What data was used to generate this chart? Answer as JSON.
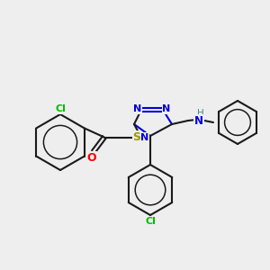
{
  "bg_color": "#eeeeee",
  "bond_color": "#1a1a1a",
  "atom_colors": {
    "Cl": "#00bb00",
    "O": "#ff0000",
    "S": "#999900",
    "N": "#0000dd",
    "H": "#448888",
    "C": "#1a1a1a"
  },
  "figsize": [
    3.0,
    3.0
  ],
  "dpi": 100,
  "lw": 1.5,
  "ring_lw": 1.5,
  "inner_circle_ratio": 0.6
}
